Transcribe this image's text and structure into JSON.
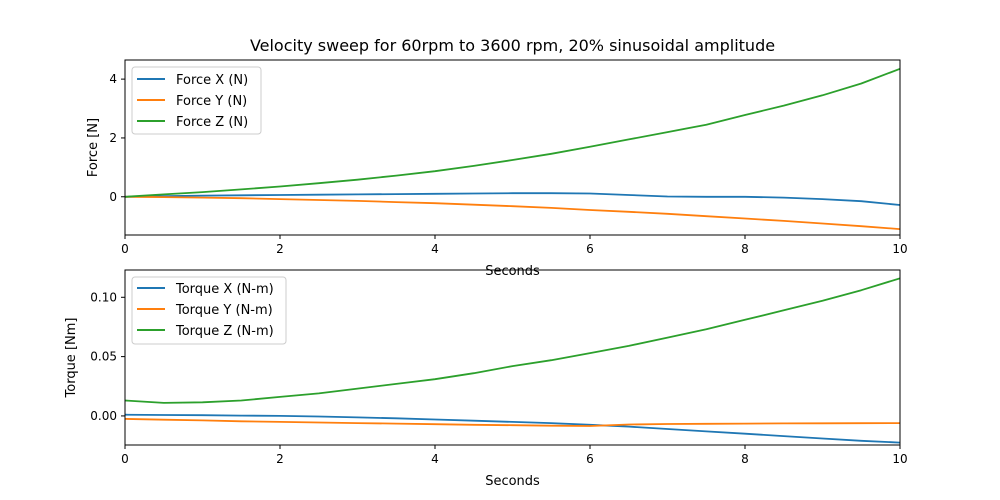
{
  "chart_data": [
    {
      "type": "line",
      "title": "Velocity sweep for 60rpm to 3600 rpm, 20% sinusoidal amplitude",
      "xlabel": "Seconds",
      "ylabel": "Force [N]",
      "xlim": [
        0,
        10
      ],
      "ylim": [
        -1.3,
        4.65
      ],
      "xticks": [
        "0",
        "2",
        "4",
        "6",
        "8",
        "10"
      ],
      "yticks": [
        "0",
        "2",
        "4"
      ],
      "grid": false,
      "legend_position": "upper-left",
      "x": [
        0,
        0.5,
        1,
        1.5,
        2,
        2.5,
        3,
        3.5,
        4,
        4.5,
        5,
        5.5,
        6,
        6.5,
        7,
        7.5,
        8,
        8.5,
        9,
        9.5,
        10
      ],
      "series": [
        {
          "name": "Force X (N)",
          "color": "#1f77b4",
          "values": [
            0,
            0.02,
            0.04,
            0.05,
            0.06,
            0.07,
            0.08,
            0.09,
            0.1,
            0.11,
            0.12,
            0.12,
            0.11,
            0.06,
            0.01,
            0.0,
            0.0,
            -0.03,
            -0.08,
            -0.15,
            -0.28
          ]
        },
        {
          "name": "Force Y (N)",
          "color": "#ff7f0e",
          "values": [
            0,
            -0.01,
            -0.03,
            -0.05,
            -0.08,
            -0.11,
            -0.14,
            -0.18,
            -0.22,
            -0.27,
            -0.32,
            -0.38,
            -0.45,
            -0.51,
            -0.58,
            -0.66,
            -0.74,
            -0.82,
            -0.91,
            -1.0,
            -1.1
          ]
        },
        {
          "name": "Force Z (N)",
          "color": "#2ca02c",
          "values": [
            0,
            0.08,
            0.16,
            0.25,
            0.35,
            0.46,
            0.58,
            0.72,
            0.87,
            1.05,
            1.25,
            1.46,
            1.7,
            1.95,
            2.2,
            2.45,
            2.78,
            3.1,
            3.45,
            3.85,
            4.35
          ]
        }
      ]
    },
    {
      "type": "line",
      "title": "",
      "xlabel": "Seconds",
      "ylabel": "Torque [Nm]",
      "xlim": [
        0,
        10
      ],
      "ylim": [
        -0.0245,
        0.123
      ],
      "xticks": [
        "0",
        "2",
        "4",
        "6",
        "8",
        "10"
      ],
      "yticks": [
        "0.00",
        "0.05",
        "0.10"
      ],
      "grid": false,
      "legend_position": "upper-left",
      "x": [
        0,
        0.5,
        1,
        1.5,
        2,
        2.5,
        3,
        3.5,
        4,
        4.5,
        5,
        5.5,
        6,
        6.5,
        7,
        7.5,
        8,
        8.5,
        9,
        9.5,
        10
      ],
      "series": [
        {
          "name": "Torque X (N-m)",
          "color": "#1f77b4",
          "values": [
            0.001,
            0.0008,
            0.0006,
            0.0003,
            0.0,
            -0.0005,
            -0.0012,
            -0.002,
            -0.003,
            -0.004,
            -0.005,
            -0.006,
            -0.0075,
            -0.009,
            -0.011,
            -0.013,
            -0.015,
            -0.017,
            -0.019,
            -0.021,
            -0.0225
          ]
        },
        {
          "name": "Torque Y (N-m)",
          "color": "#ff7f0e",
          "values": [
            -0.0025,
            -0.0032,
            -0.0038,
            -0.0045,
            -0.005,
            -0.0055,
            -0.006,
            -0.0065,
            -0.007,
            -0.0075,
            -0.0078,
            -0.0082,
            -0.0085,
            -0.0072,
            -0.0068,
            -0.0066,
            -0.0065,
            -0.0063,
            -0.0062,
            -0.0061,
            -0.006
          ]
        },
        {
          "name": "Torque Z (N-m)",
          "color": "#2ca02c",
          "values": [
            0.013,
            0.011,
            0.0115,
            0.013,
            0.016,
            0.019,
            0.023,
            0.027,
            0.031,
            0.036,
            0.042,
            0.047,
            0.053,
            0.059,
            0.066,
            0.073,
            0.081,
            0.089,
            0.097,
            0.106,
            0.116
          ]
        }
      ]
    }
  ]
}
